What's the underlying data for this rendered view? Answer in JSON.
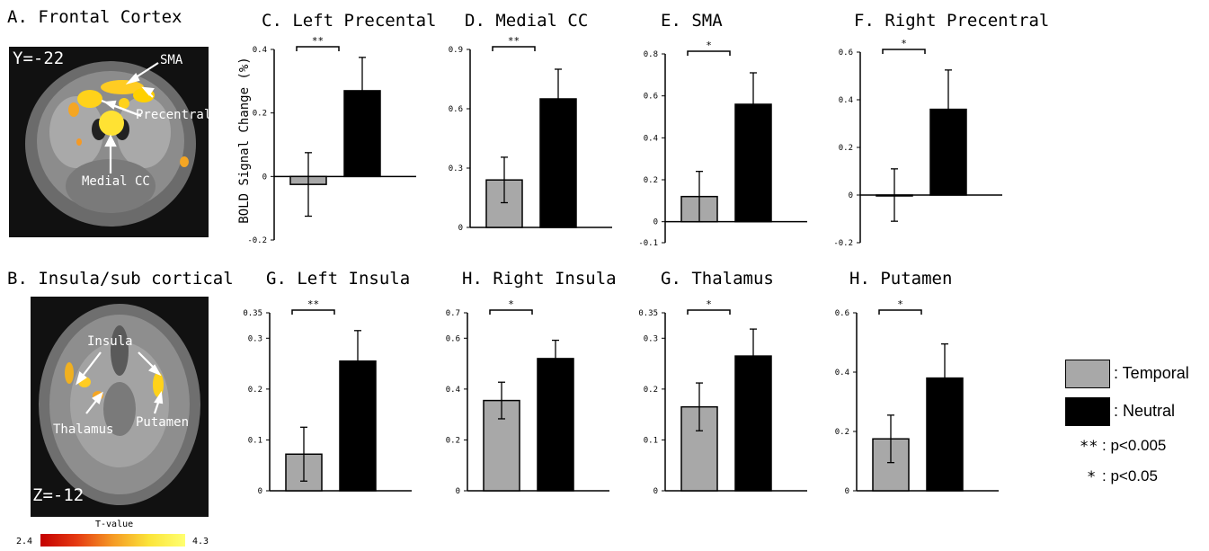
{
  "panel_a": {
    "title": "A. Frontal Cortex",
    "coord": "Y=-22",
    "labels": {
      "sma": "SMA",
      "precentral": "Precentral",
      "medial_cc": "Medial CC"
    }
  },
  "panel_b": {
    "title": "B. Insula/sub cortical",
    "coord": "Z=-12",
    "labels": {
      "insula": "Insula",
      "thalamus": "Thalamus",
      "putamen": "Putamen"
    }
  },
  "colorbar": {
    "label": "T-value",
    "min": "2.4",
    "max": "4.3"
  },
  "legend": {
    "temporal": ": Temporal",
    "neutral": ": Neutral",
    "sig1_stars": "**",
    "sig1_text": ": p<0.005",
    "sig2_stars": "*",
    "sig2_text": ": p<0.05"
  },
  "colors": {
    "temporal": "#a8a8a8",
    "neutral": "#000000"
  },
  "chart_data": [
    {
      "type": "bar",
      "title": "C. Left Precental",
      "ylabel": "BOLD Signal Change (%)",
      "categories": [
        "Temporal",
        "Neutral"
      ],
      "values": [
        -0.025,
        0.27
      ],
      "errors": [
        0.1,
        0.105
      ],
      "ylim": [
        -0.2,
        0.4
      ],
      "yticks": [
        "-0.2",
        "0",
        "0.2",
        "0.4"
      ],
      "sig": "**"
    },
    {
      "type": "bar",
      "title": "D. Medial CC",
      "ylabel": "",
      "categories": [
        "Temporal",
        "Neutral"
      ],
      "values": [
        0.24,
        0.65
      ],
      "errors": [
        0.115,
        0.15
      ],
      "ylim": [
        0,
        0.9
      ],
      "yticks": [
        "0",
        "0.3",
        "0.6",
        "0.9"
      ],
      "sig": "**"
    },
    {
      "type": "bar",
      "title": "E. SMA",
      "ylabel": "",
      "categories": [
        "Temporal",
        "Neutral"
      ],
      "values": [
        0.12,
        0.56
      ],
      "errors": [
        0.12,
        0.15
      ],
      "ylim": [
        -0.1,
        0.8
      ],
      "yticks": [
        "-0.1",
        "0",
        "0.2",
        "0.4",
        "0.6",
        "0.8"
      ],
      "sig": "*"
    },
    {
      "type": "bar",
      "title": "F. Right Precentral",
      "ylabel": "",
      "categories": [
        "Temporal",
        "Neutral"
      ],
      "values": [
        0,
        0.36
      ],
      "errors": [
        0.11,
        0.165
      ],
      "ylim": [
        -0.2,
        0.6
      ],
      "yticks": [
        "-0.2",
        "0",
        "0.2",
        "0.4",
        "0.6"
      ],
      "sig": "*"
    },
    {
      "type": "bar",
      "title": "G. Left Insula",
      "ylabel": "",
      "categories": [
        "Temporal",
        "Neutral"
      ],
      "values": [
        0.072,
        0.255
      ],
      "errors": [
        0.053,
        0.06
      ],
      "ylim": [
        0,
        0.35
      ],
      "yticks": [
        "0",
        "0.1",
        "0.2",
        "0.3",
        "0.35"
      ],
      "sig": "**"
    },
    {
      "type": "bar",
      "title": "H. Right Insula",
      "ylabel": "",
      "categories": [
        "Temporal",
        "Neutral"
      ],
      "values": [
        0.355,
        0.52
      ],
      "errors": [
        0.072,
        0.072
      ],
      "ylim": [
        0,
        0.7
      ],
      "yticks": [
        "0",
        "0.2",
        "0.4",
        "0.6",
        "0.7"
      ],
      "sig": "*"
    },
    {
      "type": "bar",
      "title": "G. Thalamus",
      "ylabel": "",
      "categories": [
        "Temporal",
        "Neutral"
      ],
      "values": [
        0.165,
        0.265
      ],
      "errors": [
        0.047,
        0.053
      ],
      "ylim": [
        0,
        0.35
      ],
      "yticks": [
        "0",
        "0.1",
        "0.2",
        "0.3",
        "0.35"
      ],
      "sig": "*"
    },
    {
      "type": "bar",
      "title": "H. Putamen",
      "ylabel": "",
      "categories": [
        "Temporal",
        "Neutral"
      ],
      "values": [
        0.175,
        0.38
      ],
      "errors": [
        0.08,
        0.115
      ],
      "ylim": [
        0,
        0.6
      ],
      "yticks": [
        "0",
        "0.2",
        "0.4",
        "0.6"
      ],
      "sig": "*"
    }
  ]
}
